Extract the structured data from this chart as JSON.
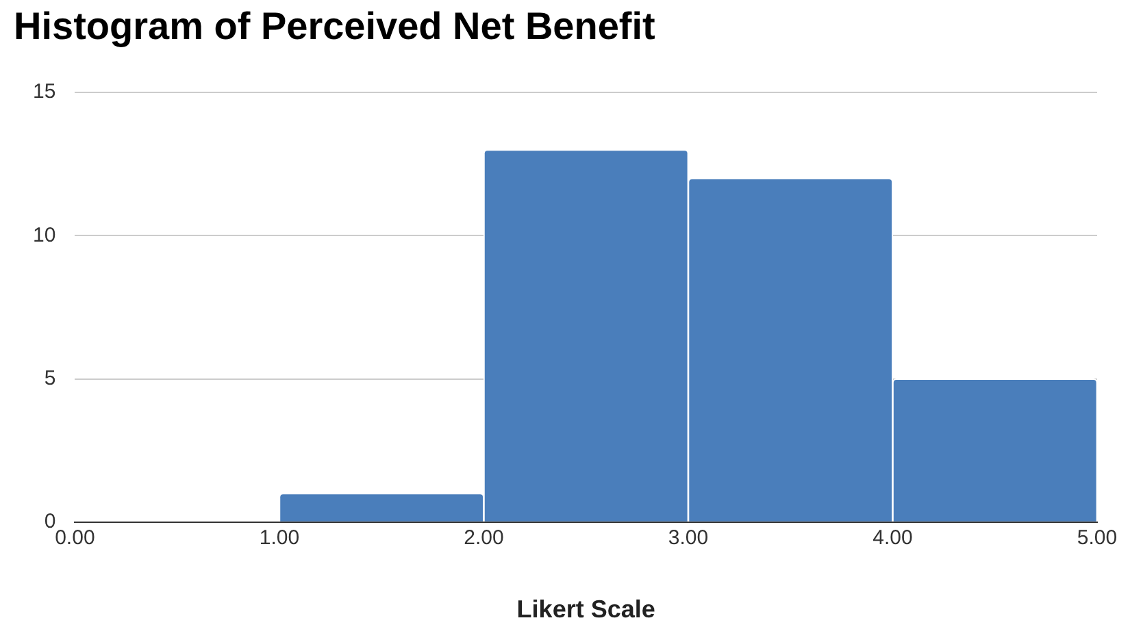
{
  "chart_data": {
    "type": "histogram",
    "title": "Histogram of Perceived Net Benefit",
    "xlabel": "Likert Scale",
    "bins": [
      0,
      1,
      2,
      3,
      4,
      5
    ],
    "values": [
      0,
      1,
      13,
      12,
      5
    ],
    "color": "#4a7ebb",
    "xlim": [
      0,
      5
    ],
    "xticks": [
      {
        "value": 0,
        "label": "0.00"
      },
      {
        "value": 1,
        "label": "1.00"
      },
      {
        "value": 2,
        "label": "2.00"
      },
      {
        "value": 3,
        "label": "3.00"
      },
      {
        "value": 4,
        "label": "4.00"
      },
      {
        "value": 5,
        "label": "5.00"
      }
    ],
    "ylim": [
      0,
      15
    ],
    "yticks": [
      0,
      5,
      10,
      15
    ],
    "grid": "y",
    "legend": false
  }
}
